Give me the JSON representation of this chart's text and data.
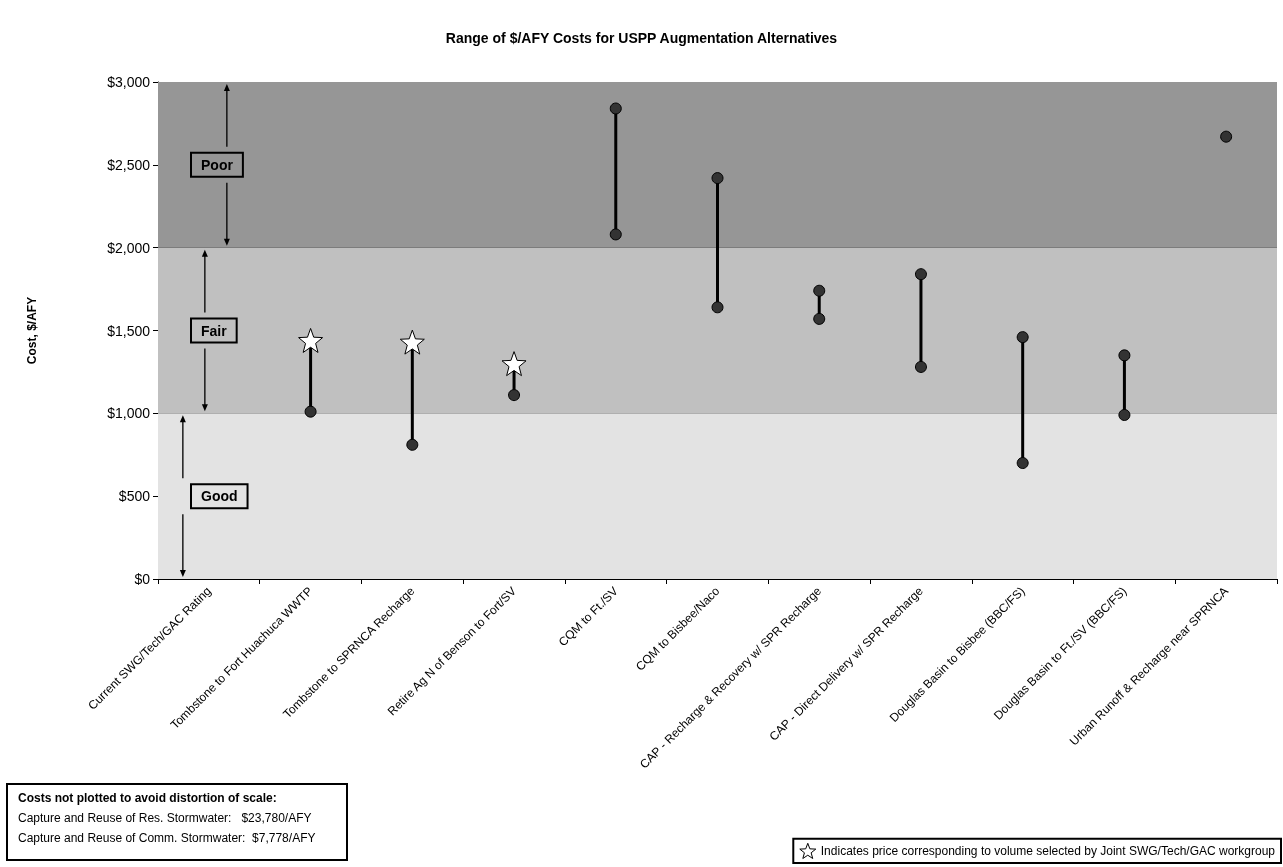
{
  "chart_data": {
    "type": "scatter",
    "title": "Range of $/AFY Costs for USPP Augmentation Alternatives",
    "ylabel": "Cost, $/AFY",
    "categories": [
      "Current SWG/Tech/GAC Rating",
      "Tombstone to Fort Huachuca WWTP",
      "Tombstone to SPRNCA Recharge",
      "Retire Ag N of Benson to Fort/SV",
      "CQM to Ft./SV",
      "CQM to Bisbee/Naco",
      "CAP - Recharge & Recovery w/ SPR Recharge",
      "CAP - Direct Delivery w/ SPR Recharge",
      "Douglas Basin to Bisbee (BBC/FS)",
      "Douglas Basin to Ft./SV (BBC/FS)",
      "Urban Runoff & Recharge near SPRNCA"
    ],
    "series": [
      {
        "color": "#333333",
        "marker": "circle",
        "values": [
          null,
          1010,
          810,
          1110,
          2080,
          1640,
          1570,
          1280,
          700,
          990,
          null
        ]
      },
      {
        "color": "#333333",
        "marker": "circle",
        "values": [
          null,
          null,
          null,
          null,
          2840,
          2420,
          1740,
          1840,
          1460,
          1350,
          2670
        ]
      },
      {
        "name": "Indicates price corresponding to volume selected by Joint SWG/Tech/GAC workgroup",
        "color": "#ffffff",
        "marker": "star",
        "values": [
          null,
          1440,
          1430,
          1300,
          null,
          null,
          null,
          null,
          null,
          null,
          null
        ]
      }
    ],
    "ylim": [
      0,
      3000
    ],
    "yticks": [
      {
        "value": 0,
        "label": "$0"
      },
      {
        "value": 500,
        "label": "$500"
      },
      {
        "value": 1000,
        "label": "$1,000"
      },
      {
        "value": 1500,
        "label": "$1,500"
      },
      {
        "value": 2000,
        "label": "$2,000"
      },
      {
        "value": 2500,
        "label": "$2,500"
      },
      {
        "value": 3000,
        "label": "$3,000"
      }
    ],
    "bands": [
      {
        "axis": "y",
        "from": 0,
        "to": 1000,
        "label": "Good",
        "color": "#e3e3e3"
      },
      {
        "axis": "y",
        "from": 1000,
        "to": 2000,
        "label": "Fair",
        "color": "#c0c0c0"
      },
      {
        "axis": "y",
        "from": 2000,
        "to": 3000,
        "label": "Poor",
        "color": "#969696"
      }
    ],
    "grid": "y",
    "legend": "bottom right",
    "annotations": [
      "Costs not plotted to avoid distortion of scale:",
      "Capture and Reuse of Res. Stormwater:   $23,780/AFY",
      "Capture and Reuse of Comm. Stormwater:  $7,778/AFY"
    ]
  }
}
